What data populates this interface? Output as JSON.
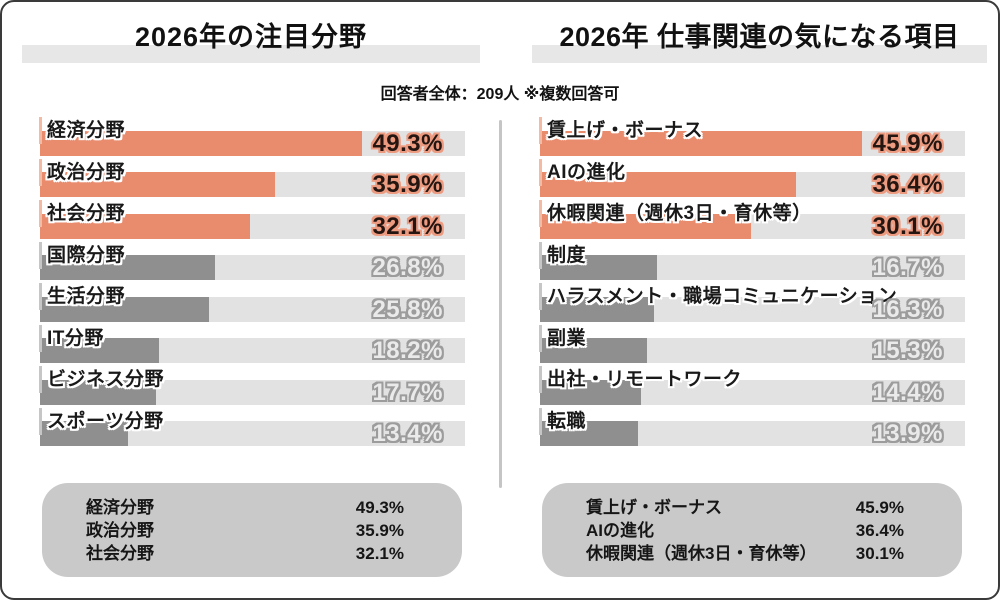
{
  "survey_note": "回答者全体：209人 ※複数回答可",
  "colors": {
    "highlight_bar": "#E98C6E",
    "muted_bar": "#8F8F8F",
    "bar_track": "#E2E2E2",
    "highlight_value_outline": "#EC9B80",
    "muted_value_outline": "#9C9C9C",
    "title_band_bg": "#E7E7E7",
    "summary_box_bg": "#C9C9C9"
  },
  "chart_data": [
    {
      "type": "bar",
      "orientation": "horizontal",
      "title": "2026年の注目分野",
      "categories": [
        "経済分野",
        "政治分野",
        "社会分野",
        "国際分野",
        "生活分野",
        "IT分野",
        "ビジネス分野",
        "スポーツ分野"
      ],
      "values": [
        49.3,
        35.9,
        32.1,
        26.8,
        25.8,
        18.2,
        17.7,
        13.4
      ],
      "value_suffix": "%",
      "highlighted_top_n": 3,
      "xlim": [
        0,
        65
      ],
      "grid": false,
      "legend": false
    },
    {
      "type": "bar",
      "orientation": "horizontal",
      "title": "2026年 仕事関連の気になる項目",
      "categories": [
        "賃上げ・ボーナス",
        "AIの進化",
        "休暇関連（週休3日・育休等）",
        "制度",
        "ハラスメント・職場コミュニケーション",
        "副業",
        "出社・リモートワーク",
        "転職"
      ],
      "values": [
        45.9,
        36.4,
        30.1,
        16.7,
        16.3,
        15.3,
        14.4,
        13.9
      ],
      "value_suffix": "%",
      "highlighted_top_n": 3,
      "xlim": [
        0,
        60.5
      ],
      "grid": false,
      "legend": false
    }
  ]
}
